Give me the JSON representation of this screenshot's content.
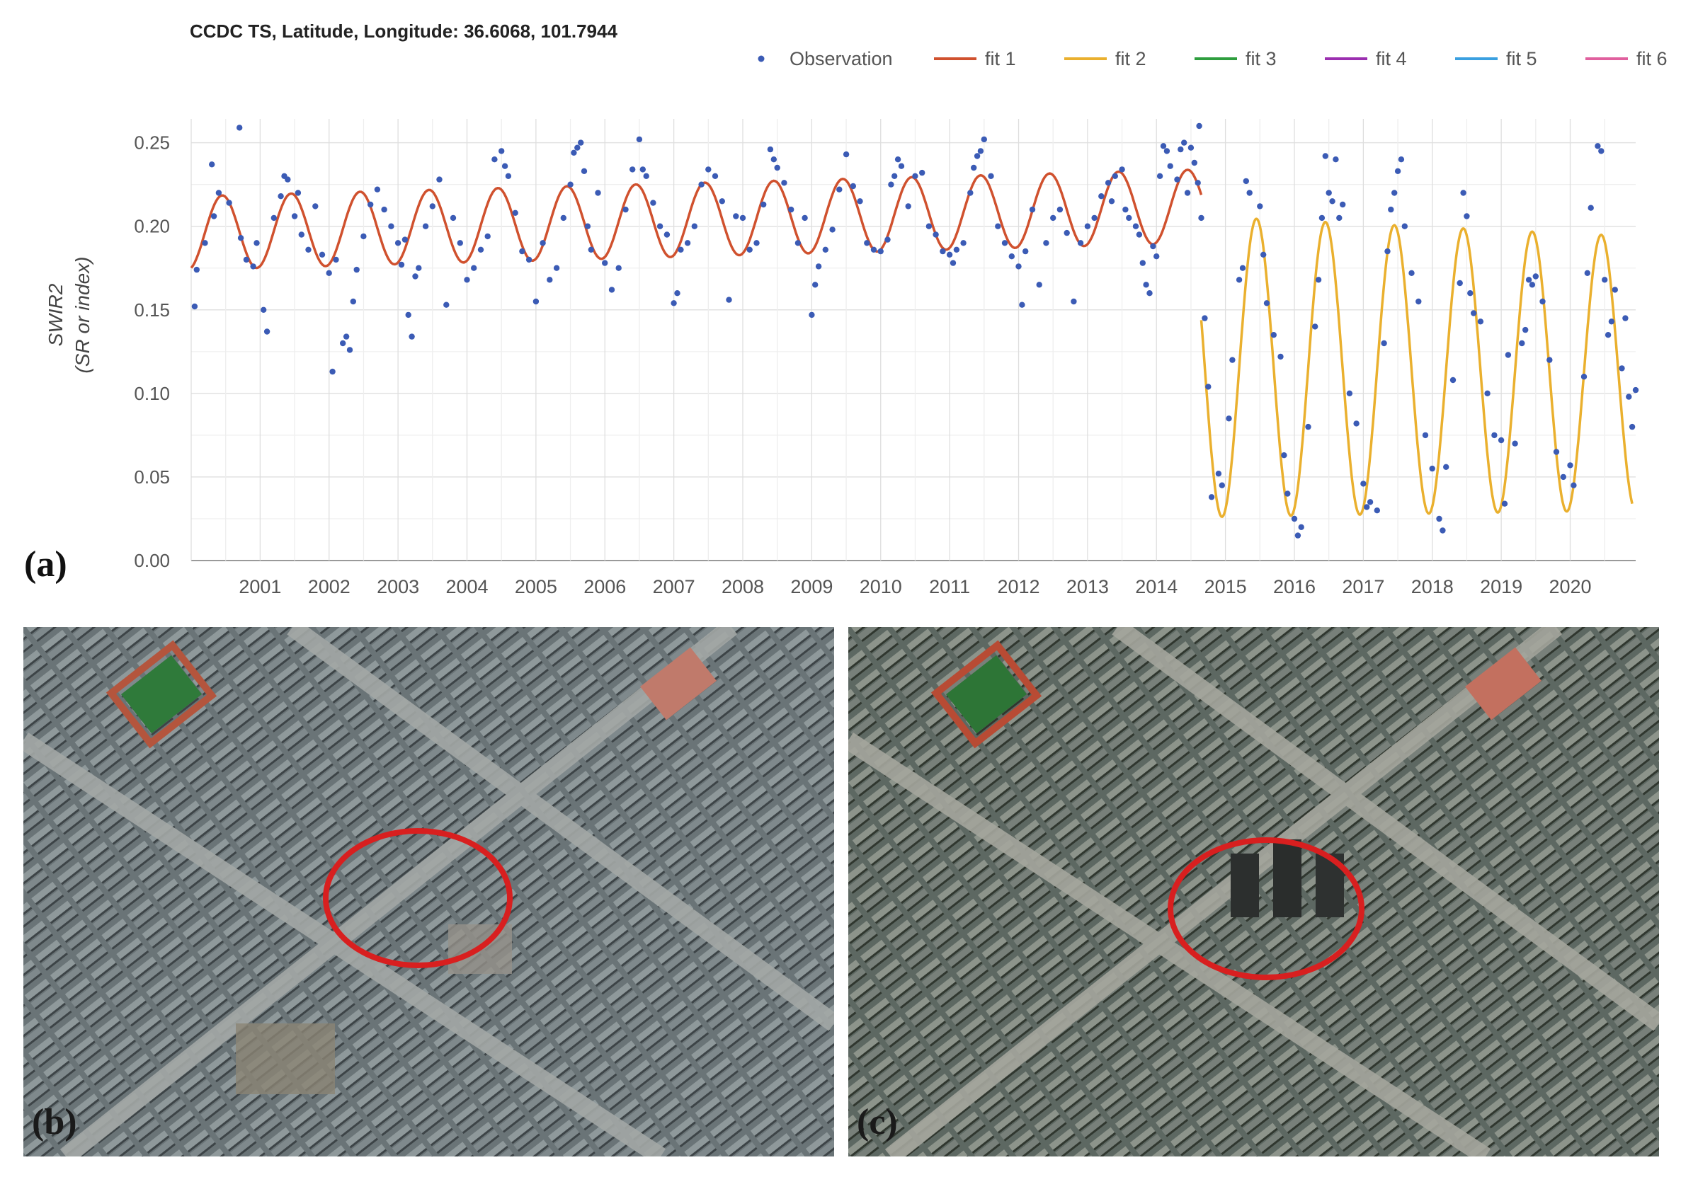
{
  "chart_data": {
    "type": "scatter",
    "title": "CCDC TS, Latitude, Longitude: 36.6068, 101.7944",
    "ylabel": "SWIR2",
    "ylabel_sub": "(SR or index)",
    "xlabel": "",
    "xlim": [
      2000.0,
      2020.95
    ],
    "ylim": [
      0.0,
      0.26
    ],
    "yticks": [
      0.0,
      0.05,
      0.1,
      0.15,
      0.2,
      0.25
    ],
    "ytick_labels": [
      "0.00",
      "0.05",
      "0.10",
      "0.15",
      "0.20",
      "0.25"
    ],
    "xtick_labels": [
      "2001",
      "2002",
      "2003",
      "2004",
      "2005",
      "2006",
      "2007",
      "2008",
      "2009",
      "2010",
      "2011",
      "2012",
      "2013",
      "2014",
      "2015",
      "2016",
      "2017",
      "2018",
      "2019",
      "2020"
    ],
    "grid": true,
    "legend_position": "top-right",
    "legend": [
      {
        "name": "Observation",
        "color": "#3b5bb5",
        "kind": "point"
      },
      {
        "name": "fit 1",
        "color": "#d0512e",
        "kind": "line"
      },
      {
        "name": "fit 2",
        "color": "#eab02e",
        "kind": "line"
      },
      {
        "name": "fit 3",
        "color": "#2e9e3e",
        "kind": "line"
      },
      {
        "name": "fit 4",
        "color": "#9b2fb0",
        "kind": "line"
      },
      {
        "name": "fit 5",
        "color": "#3aa0e0",
        "kind": "line"
      },
      {
        "name": "fit 6",
        "color": "#e0609e",
        "kind": "line"
      }
    ],
    "fits": [
      {
        "name": "fit 1",
        "x_start": 2000.0,
        "x_end": 2014.65,
        "mean_start": 0.196,
        "mean_end": 0.212,
        "amplitude": 0.022,
        "peak_phase": 0.45
      },
      {
        "name": "fit 2",
        "x_start": 2014.65,
        "x_end": 2020.9,
        "mean_start": 0.116,
        "mean_end": 0.112,
        "amplitude_start": 0.09,
        "amplitude_end": 0.082,
        "peak_phase": 0.45
      }
    ],
    "observations": [
      [
        2000.05,
        0.152
      ],
      [
        2000.08,
        0.174
      ],
      [
        2000.2,
        0.19
      ],
      [
        2000.3,
        0.237
      ],
      [
        2000.33,
        0.206
      ],
      [
        2000.4,
        0.22
      ],
      [
        2000.55,
        0.214
      ],
      [
        2000.7,
        0.259
      ],
      [
        2000.72,
        0.193
      ],
      [
        2000.8,
        0.18
      ],
      [
        2000.9,
        0.176
      ],
      [
        2000.95,
        0.19
      ],
      [
        2001.05,
        0.15
      ],
      [
        2001.1,
        0.137
      ],
      [
        2001.2,
        0.205
      ],
      [
        2001.3,
        0.218
      ],
      [
        2001.35,
        0.23
      ],
      [
        2001.4,
        0.228
      ],
      [
        2001.5,
        0.206
      ],
      [
        2001.55,
        0.22
      ],
      [
        2001.6,
        0.195
      ],
      [
        2001.7,
        0.186
      ],
      [
        2001.8,
        0.212
      ],
      [
        2001.9,
        0.183
      ],
      [
        2002.0,
        0.172
      ],
      [
        2002.05,
        0.113
      ],
      [
        2002.1,
        0.18
      ],
      [
        2002.2,
        0.13
      ],
      [
        2002.25,
        0.134
      ],
      [
        2002.3,
        0.126
      ],
      [
        2002.35,
        0.155
      ],
      [
        2002.4,
        0.174
      ],
      [
        2002.5,
        0.194
      ],
      [
        2002.6,
        0.213
      ],
      [
        2002.7,
        0.222
      ],
      [
        2002.8,
        0.21
      ],
      [
        2002.9,
        0.2
      ],
      [
        2003.0,
        0.19
      ],
      [
        2003.05,
        0.177
      ],
      [
        2003.1,
        0.192
      ],
      [
        2003.15,
        0.147
      ],
      [
        2003.2,
        0.134
      ],
      [
        2003.25,
        0.17
      ],
      [
        2003.3,
        0.175
      ],
      [
        2003.4,
        0.2
      ],
      [
        2003.5,
        0.212
      ],
      [
        2003.6,
        0.228
      ],
      [
        2003.7,
        0.153
      ],
      [
        2003.8,
        0.205
      ],
      [
        2003.9,
        0.19
      ],
      [
        2004.0,
        0.168
      ],
      [
        2004.1,
        0.175
      ],
      [
        2004.2,
        0.186
      ],
      [
        2004.3,
        0.194
      ],
      [
        2004.4,
        0.24
      ],
      [
        2004.5,
        0.245
      ],
      [
        2004.55,
        0.236
      ],
      [
        2004.6,
        0.23
      ],
      [
        2004.7,
        0.208
      ],
      [
        2004.8,
        0.185
      ],
      [
        2004.9,
        0.18
      ],
      [
        2005.0,
        0.155
      ],
      [
        2005.1,
        0.19
      ],
      [
        2005.2,
        0.168
      ],
      [
        2005.3,
        0.175
      ],
      [
        2005.4,
        0.205
      ],
      [
        2005.5,
        0.225
      ],
      [
        2005.55,
        0.244
      ],
      [
        2005.6,
        0.247
      ],
      [
        2005.65,
        0.25
      ],
      [
        2005.7,
        0.233
      ],
      [
        2005.75,
        0.2
      ],
      [
        2005.8,
        0.186
      ],
      [
        2005.9,
        0.22
      ],
      [
        2006.0,
        0.178
      ],
      [
        2006.1,
        0.162
      ],
      [
        2006.2,
        0.175
      ],
      [
        2006.3,
        0.21
      ],
      [
        2006.4,
        0.234
      ],
      [
        2006.5,
        0.252
      ],
      [
        2006.55,
        0.234
      ],
      [
        2006.6,
        0.23
      ],
      [
        2006.7,
        0.214
      ],
      [
        2006.8,
        0.2
      ],
      [
        2006.9,
        0.195
      ],
      [
        2007.0,
        0.154
      ],
      [
        2007.05,
        0.16
      ],
      [
        2007.1,
        0.186
      ],
      [
        2007.2,
        0.19
      ],
      [
        2007.3,
        0.2
      ],
      [
        2007.4,
        0.225
      ],
      [
        2007.5,
        0.234
      ],
      [
        2007.6,
        0.23
      ],
      [
        2007.7,
        0.215
      ],
      [
        2007.8,
        0.156
      ],
      [
        2007.9,
        0.206
      ],
      [
        2008.0,
        0.205
      ],
      [
        2008.1,
        0.186
      ],
      [
        2008.2,
        0.19
      ],
      [
        2008.3,
        0.213
      ],
      [
        2008.4,
        0.246
      ],
      [
        2008.45,
        0.24
      ],
      [
        2008.5,
        0.235
      ],
      [
        2008.6,
        0.226
      ],
      [
        2008.7,
        0.21
      ],
      [
        2008.8,
        0.19
      ],
      [
        2008.9,
        0.205
      ],
      [
        2009.0,
        0.147
      ],
      [
        2009.05,
        0.165
      ],
      [
        2009.1,
        0.176
      ],
      [
        2009.2,
        0.186
      ],
      [
        2009.3,
        0.198
      ],
      [
        2009.4,
        0.222
      ],
      [
        2009.5,
        0.243
      ],
      [
        2009.6,
        0.224
      ],
      [
        2009.7,
        0.215
      ],
      [
        2009.8,
        0.19
      ],
      [
        2009.9,
        0.186
      ],
      [
        2010.0,
        0.185
      ],
      [
        2010.1,
        0.192
      ],
      [
        2010.15,
        0.225
      ],
      [
        2010.2,
        0.23
      ],
      [
        2010.25,
        0.24
      ],
      [
        2010.3,
        0.236
      ],
      [
        2010.4,
        0.212
      ],
      [
        2010.5,
        0.23
      ],
      [
        2010.6,
        0.232
      ],
      [
        2010.7,
        0.2
      ],
      [
        2010.8,
        0.195
      ],
      [
        2010.9,
        0.185
      ],
      [
        2011.0,
        0.183
      ],
      [
        2011.05,
        0.178
      ],
      [
        2011.1,
        0.186
      ],
      [
        2011.2,
        0.19
      ],
      [
        2011.3,
        0.22
      ],
      [
        2011.35,
        0.235
      ],
      [
        2011.4,
        0.242
      ],
      [
        2011.45,
        0.245
      ],
      [
        2011.5,
        0.252
      ],
      [
        2011.6,
        0.23
      ],
      [
        2011.7,
        0.2
      ],
      [
        2011.8,
        0.19
      ],
      [
        2011.9,
        0.182
      ],
      [
        2012.0,
        0.176
      ],
      [
        2012.05,
        0.153
      ],
      [
        2012.1,
        0.185
      ],
      [
        2012.2,
        0.21
      ],
      [
        2012.3,
        0.165
      ],
      [
        2012.4,
        0.19
      ],
      [
        2012.5,
        0.205
      ],
      [
        2012.6,
        0.21
      ],
      [
        2012.7,
        0.196
      ],
      [
        2012.8,
        0.155
      ],
      [
        2012.9,
        0.19
      ],
      [
        2013.0,
        0.2
      ],
      [
        2013.1,
        0.205
      ],
      [
        2013.2,
        0.218
      ],
      [
        2013.3,
        0.226
      ],
      [
        2013.35,
        0.215
      ],
      [
        2013.4,
        0.23
      ],
      [
        2013.5,
        0.234
      ],
      [
        2013.55,
        0.21
      ],
      [
        2013.6,
        0.205
      ],
      [
        2013.7,
        0.2
      ],
      [
        2013.75,
        0.195
      ],
      [
        2013.8,
        0.178
      ],
      [
        2013.85,
        0.165
      ],
      [
        2013.9,
        0.16
      ],
      [
        2013.95,
        0.188
      ],
      [
        2014.0,
        0.182
      ],
      [
        2014.05,
        0.23
      ],
      [
        2014.1,
        0.248
      ],
      [
        2014.15,
        0.245
      ],
      [
        2014.2,
        0.236
      ],
      [
        2014.3,
        0.228
      ],
      [
        2014.35,
        0.246
      ],
      [
        2014.4,
        0.25
      ],
      [
        2014.45,
        0.22
      ],
      [
        2014.5,
        0.247
      ],
      [
        2014.55,
        0.238
      ],
      [
        2014.6,
        0.226
      ],
      [
        2014.62,
        0.26
      ],
      [
        2014.65,
        0.205
      ],
      [
        2014.7,
        0.145
      ],
      [
        2014.75,
        0.104
      ],
      [
        2014.8,
        0.038
      ],
      [
        2014.9,
        0.052
      ],
      [
        2014.95,
        0.045
      ],
      [
        2015.05,
        0.085
      ],
      [
        2015.1,
        0.12
      ],
      [
        2015.2,
        0.168
      ],
      [
        2015.25,
        0.175
      ],
      [
        2015.3,
        0.227
      ],
      [
        2015.35,
        0.22
      ],
      [
        2015.5,
        0.212
      ],
      [
        2015.55,
        0.183
      ],
      [
        2015.6,
        0.154
      ],
      [
        2015.7,
        0.135
      ],
      [
        2015.8,
        0.122
      ],
      [
        2015.85,
        0.063
      ],
      [
        2015.9,
        0.04
      ],
      [
        2016.0,
        0.025
      ],
      [
        2016.05,
        0.015
      ],
      [
        2016.1,
        0.02
      ],
      [
        2016.2,
        0.08
      ],
      [
        2016.3,
        0.14
      ],
      [
        2016.35,
        0.168
      ],
      [
        2016.4,
        0.205
      ],
      [
        2016.45,
        0.242
      ],
      [
        2016.5,
        0.22
      ],
      [
        2016.55,
        0.215
      ],
      [
        2016.6,
        0.24
      ],
      [
        2016.65,
        0.205
      ],
      [
        2016.7,
        0.213
      ],
      [
        2016.8,
        0.1
      ],
      [
        2016.9,
        0.082
      ],
      [
        2017.0,
        0.046
      ],
      [
        2017.05,
        0.032
      ],
      [
        2017.1,
        0.035
      ],
      [
        2017.2,
        0.03
      ],
      [
        2017.3,
        0.13
      ],
      [
        2017.35,
        0.185
      ],
      [
        2017.4,
        0.21
      ],
      [
        2017.45,
        0.22
      ],
      [
        2017.5,
        0.233
      ],
      [
        2017.55,
        0.24
      ],
      [
        2017.6,
        0.2
      ],
      [
        2017.7,
        0.172
      ],
      [
        2017.8,
        0.155
      ],
      [
        2017.9,
        0.075
      ],
      [
        2018.0,
        0.055
      ],
      [
        2018.1,
        0.025
      ],
      [
        2018.15,
        0.018
      ],
      [
        2018.2,
        0.056
      ],
      [
        2018.3,
        0.108
      ],
      [
        2018.4,
        0.166
      ],
      [
        2018.45,
        0.22
      ],
      [
        2018.5,
        0.206
      ],
      [
        2018.55,
        0.16
      ],
      [
        2018.6,
        0.148
      ],
      [
        2018.7,
        0.143
      ],
      [
        2018.8,
        0.1
      ],
      [
        2018.9,
        0.075
      ],
      [
        2019.0,
        0.072
      ],
      [
        2019.05,
        0.034
      ],
      [
        2019.1,
        0.123
      ],
      [
        2019.2,
        0.07
      ],
      [
        2019.3,
        0.13
      ],
      [
        2019.35,
        0.138
      ],
      [
        2019.4,
        0.168
      ],
      [
        2019.45,
        0.165
      ],
      [
        2019.5,
        0.17
      ],
      [
        2019.6,
        0.155
      ],
      [
        2019.7,
        0.12
      ],
      [
        2019.8,
        0.065
      ],
      [
        2019.9,
        0.05
      ],
      [
        2020.0,
        0.057
      ],
      [
        2020.05,
        0.045
      ],
      [
        2020.2,
        0.11
      ],
      [
        2020.25,
        0.172
      ],
      [
        2020.3,
        0.211
      ],
      [
        2020.4,
        0.248
      ],
      [
        2020.45,
        0.245
      ],
      [
        2020.5,
        0.168
      ],
      [
        2020.55,
        0.135
      ],
      [
        2020.6,
        0.143
      ],
      [
        2020.65,
        0.162
      ],
      [
        2020.75,
        0.115
      ],
      [
        2020.8,
        0.145
      ],
      [
        2020.85,
        0.098
      ],
      [
        2020.9,
        0.08
      ],
      [
        2020.95,
        0.102
      ]
    ]
  },
  "panels": {
    "a_label": "(a)",
    "b_label": "(b)",
    "c_label": "(c)"
  },
  "colors": {
    "highlight_ellipse": "#d81f1f",
    "grid": "#e2e2e2",
    "axis_text": "#444444"
  }
}
